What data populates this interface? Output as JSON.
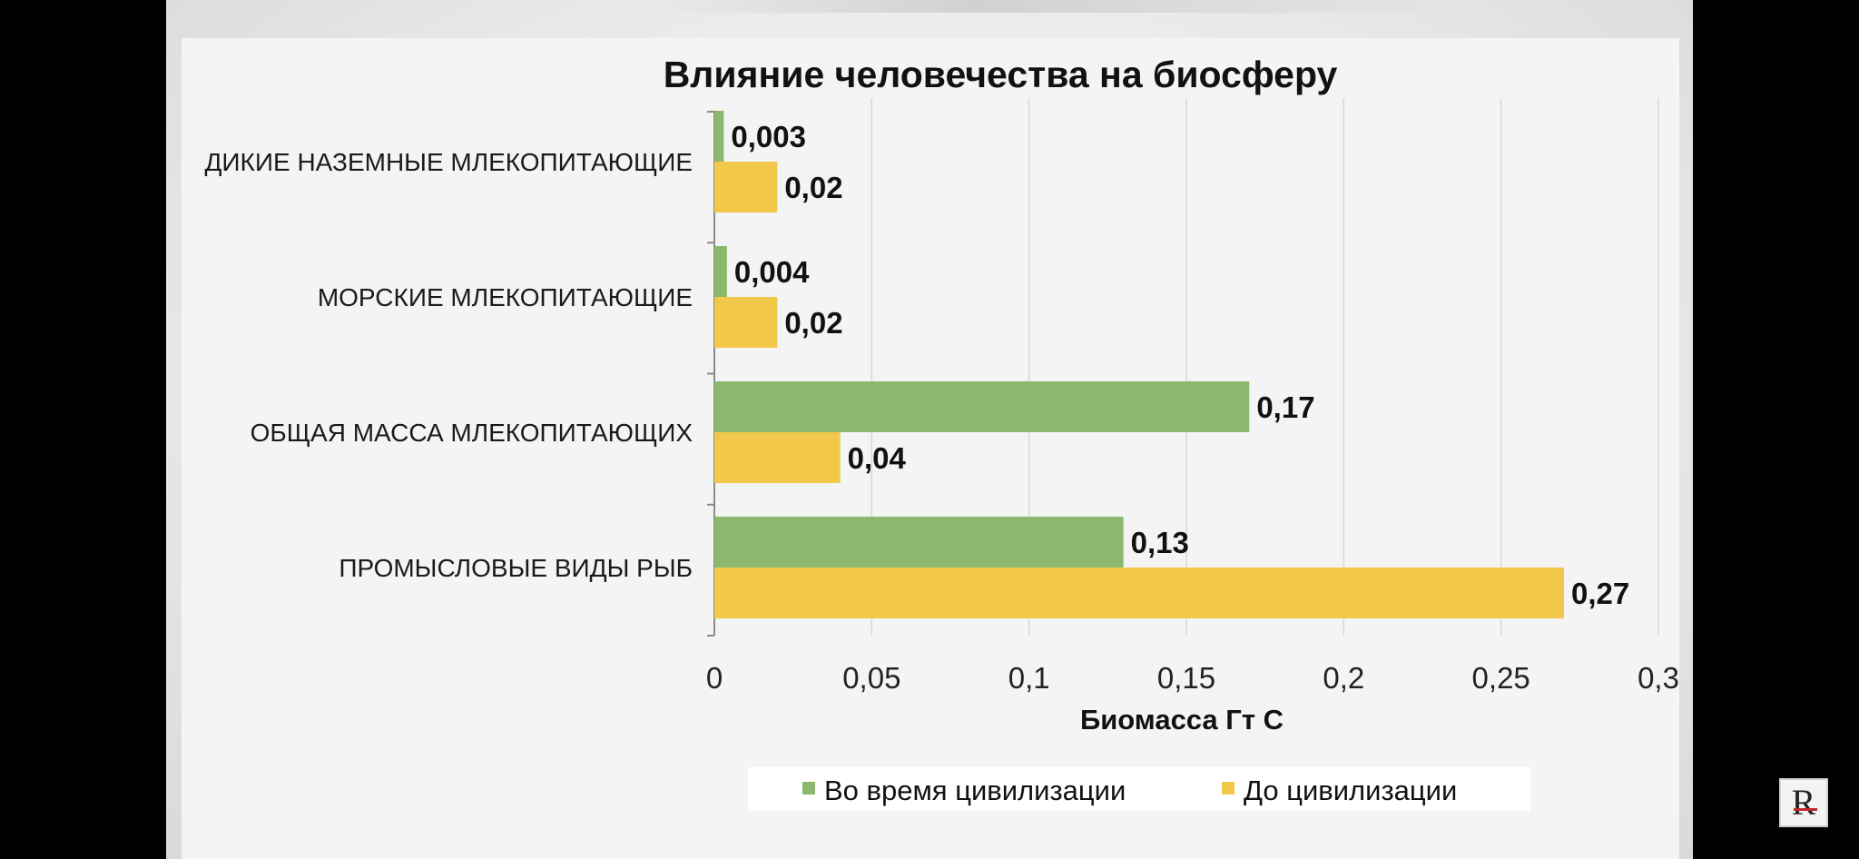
{
  "chart_data": {
    "type": "bar",
    "orientation": "horizontal",
    "title": "Влияние человечества на биосферу",
    "xlabel": "Биомасса Гт С",
    "ylabel": "",
    "categories": [
      "ДИКИЕ НАЗЕМНЫЕ МЛЕКОПИТАЮЩИЕ",
      "МОРСКИЕ МЛЕКОПИТАЮЩИЕ",
      "ОБЩАЯ МАССА МЛЕКОПИТАЮЩИХ",
      "ПРОМЫСЛОВЫЕ ВИДЫ РЫБ"
    ],
    "series": [
      {
        "name": "Во время цивилизации",
        "color": "#8cb86d",
        "values": [
          0.003,
          0.004,
          0.17,
          0.13
        ],
        "labels": [
          "0,003",
          "0,004",
          "0,17",
          "0,13"
        ]
      },
      {
        "name": "До цивилизации",
        "color": "#f2c84b",
        "values": [
          0.02,
          0.02,
          0.04,
          0.27
        ],
        "labels": [
          "0,02",
          "0,02",
          "0,04",
          "0,27"
        ]
      }
    ],
    "xlim": [
      0,
      0.3
    ],
    "xticks": [
      0,
      0.05,
      0.1,
      0.15,
      0.2,
      0.25,
      0.3
    ],
    "xtick_labels": [
      "0",
      "0,05",
      "0,1",
      "0,15",
      "0,2",
      "0,25",
      "0,3"
    ],
    "grid": true,
    "legend_position": "bottom"
  },
  "logo": {
    "letter": "R",
    "icon": "channel-logo-icon",
    "accent": "#c0272d"
  }
}
